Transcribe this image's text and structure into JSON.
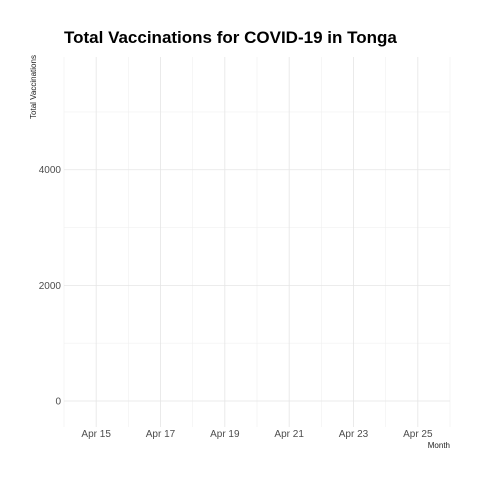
{
  "chart_data": {
    "type": "line",
    "title": "Total Vaccinations for COVID-19 in Tonga",
    "xlabel": "Month",
    "ylabel": "Total Vaccinations",
    "x_ticks": [
      "Apr 15",
      "Apr 17",
      "Apr 19",
      "Apr 21",
      "Apr 23",
      "Apr 25"
    ],
    "x_tick_dates": [
      "2021-04-15",
      "2021-04-17",
      "2021-04-19",
      "2021-04-21",
      "2021-04-23",
      "2021-04-25"
    ],
    "xlim": [
      "2021-04-14",
      "2021-04-26"
    ],
    "y_ticks": [
      0,
      2000,
      4000
    ],
    "ylim": [
      -450,
      5950
    ],
    "grid": true,
    "series": []
  }
}
